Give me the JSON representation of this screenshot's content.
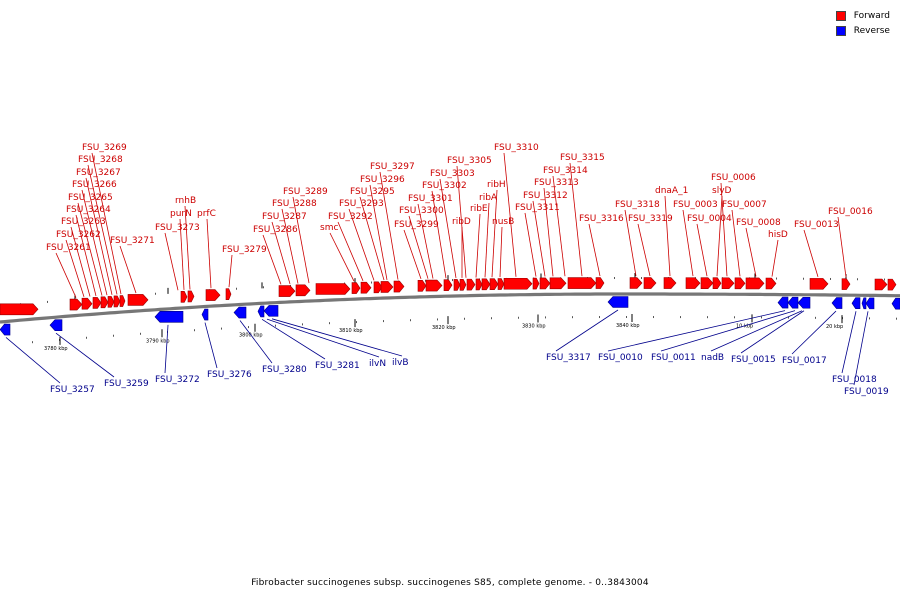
{
  "legend": {
    "forward": {
      "label": "Forward",
      "color": "#ff0000"
    },
    "reverse": {
      "label": "Reverse",
      "color": "#0000ff"
    }
  },
  "caption": "Fibrobacter succinogenes subsp. succinogenes S85, complete genome. - 0..3843004",
  "colors": {
    "forward_label": "#cc0000",
    "reverse_label": "#00008b",
    "backbone": "#777777"
  },
  "ticks": [
    "3780 kbp",
    "3790 kbp",
    "3800 kbp",
    "3810 kbp",
    "3820 kbp",
    "3830 kbp",
    "3840 kbp",
    "10 kbp",
    "20 kbp"
  ],
  "forward_labels": [
    "FSU_3261",
    "FSU_3262",
    "FSU_3263",
    "FSU_3264",
    "FSU_3265",
    "FSU_3266",
    "FSU_3267",
    "FSU_3268",
    "FSU_3269",
    "FSU_3271",
    "rnhB",
    "purN",
    "FSU_3273",
    "prfC",
    "FSU_3279",
    "FSU_3286",
    "FSU_3287",
    "FSU_3288",
    "FSU_3289",
    "smc",
    "FSU_3292",
    "FSU_3293",
    "FSU_3295",
    "FSU_3296",
    "FSU_3297",
    "FSU_3299",
    "FSU_3300",
    "FSU_3301",
    "FSU_3302",
    "FSU_3303",
    "FSU_3305",
    "ribD",
    "ribE",
    "ribA",
    "ribH",
    "nusB",
    "FSU_3310",
    "FSU_3311",
    "FSU_3312",
    "FSU_3313",
    "FSU_3314",
    "FSU_3315",
    "FSU_3316",
    "FSU_3318",
    "FSU_3319",
    "dnaA_1",
    "FSU_0003",
    "FSU_0004",
    "slyD",
    "FSU_0006",
    "FSU_0007",
    "FSU_0008",
    "hisD",
    "FSU_0013",
    "FSU_0016"
  ],
  "reverse_labels": [
    "FSU_3257",
    "FSU_3259",
    "FSU_3272",
    "FSU_3276",
    "FSU_3280",
    "FSU_3281",
    "ilvN",
    "ilvB",
    "FSU_3317",
    "FSU_0010",
    "FSU_0011",
    "nadB",
    "FSU_0015",
    "FSU_0017",
    "FSU_0018",
    "FSU_0019"
  ]
}
